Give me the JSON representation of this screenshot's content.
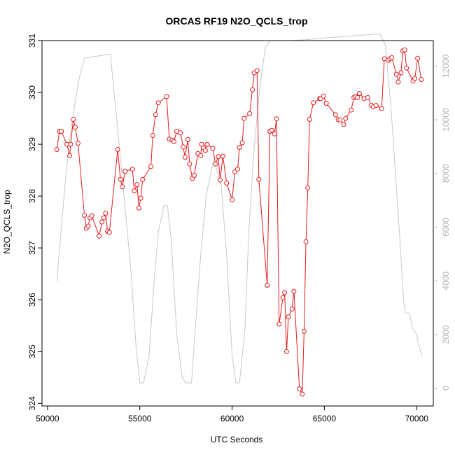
{
  "chart_data": {
    "type": "line",
    "title": "ORCAS RF19 N2O_QCLS_trop",
    "xlabel": "UTC Seconds",
    "ylabel": "N2O_QCLS_trop",
    "xlim": [
      50000,
      70000
    ],
    "ylim": [
      324,
      331
    ],
    "x_ticks": [
      50000,
      55000,
      60000,
      65000,
      70000
    ],
    "y_ticks": [
      324,
      325,
      326,
      327,
      328,
      329,
      330,
      331
    ],
    "y2lim": [
      0,
      13000
    ],
    "y2_ticks": [
      0,
      2000,
      4000,
      6000,
      8000,
      10000,
      12000
    ],
    "grid": false,
    "colors": {
      "series": "#e41a1c",
      "altitude": "#c8c8c8",
      "right_axis": "#b4b4b4"
    },
    "series": [
      {
        "axis": "left",
        "style": "line+open-circles",
        "x": [
          50500,
          50650,
          50750,
          51050,
          51200,
          51250,
          51400,
          51500,
          51650,
          52000,
          52100,
          52200,
          52300,
          52400,
          52800,
          52950,
          53050,
          53150,
          53250,
          53350,
          53800,
          53950,
          54050,
          54200,
          54600,
          54700,
          54850,
          54950,
          55050,
          55150,
          55600,
          55700,
          55850,
          56000,
          56450,
          56600,
          56750,
          56850,
          57000,
          57200,
          57350,
          57450,
          57600,
          57700,
          57850,
          57950,
          58150,
          58300,
          58350,
          58450,
          58550,
          58650,
          58950,
          59100,
          59250,
          59350,
          59500,
          59700,
          60000,
          60150,
          60300,
          60400,
          60550,
          60650,
          60950,
          61100,
          61200,
          61350,
          61450,
          61900,
          62050,
          62150,
          62300,
          62400,
          62550,
          62750,
          62850,
          62950,
          63050,
          63250,
          63350,
          63650,
          63800,
          63900,
          64000,
          64100,
          64200,
          64400,
          64750,
          64800,
          64950,
          65100,
          65600,
          65750,
          65850,
          66050,
          66150,
          66450,
          66600,
          66700,
          66800,
          66900,
          67150,
          67350,
          67550,
          67650,
          67800,
          68100,
          68250,
          68450,
          68550,
          68650,
          68900,
          69000,
          69150,
          69250,
          69350,
          69450,
          69800,
          69900,
          70050,
          70250
        ],
        "y": [
          328.9,
          329.25,
          329.25,
          329.0,
          328.78,
          329.0,
          329.48,
          329.33,
          329.02,
          327.63,
          327.38,
          327.42,
          327.58,
          327.62,
          327.23,
          327.5,
          327.58,
          327.67,
          327.32,
          327.3,
          328.9,
          328.32,
          328.18,
          328.48,
          328.52,
          328.1,
          328.22,
          327.77,
          327.96,
          328.32,
          328.57,
          329.17,
          329.57,
          329.8,
          329.92,
          329.1,
          329.08,
          329.05,
          329.25,
          329.22,
          328.95,
          328.75,
          329.09,
          328.62,
          328.34,
          328.4,
          328.82,
          328.78,
          329.0,
          328.93,
          328.88,
          329.0,
          328.92,
          328.62,
          328.76,
          328.31,
          328.77,
          328.25,
          327.93,
          328.47,
          328.52,
          328.94,
          329.03,
          329.5,
          329.59,
          330.05,
          330.38,
          330.42,
          328.32,
          326.28,
          329.25,
          329.27,
          329.2,
          329.49,
          325.53,
          326.04,
          326.14,
          325.0,
          325.67,
          325.82,
          326.16,
          324.28,
          324.18,
          325.39,
          327.12,
          328.16,
          329.48,
          329.8,
          329.88,
          329.88,
          329.93,
          329.79,
          329.57,
          329.47,
          329.47,
          329.38,
          329.5,
          329.66,
          329.9,
          329.92,
          329.9,
          329.98,
          329.88,
          329.9,
          329.75,
          329.72,
          329.75,
          329.69,
          330.65,
          330.62,
          330.65,
          330.67,
          330.35,
          330.2,
          330.38,
          330.8,
          330.82,
          330.47,
          330.22,
          330.27,
          330.66,
          330.25
        ]
      },
      {
        "axis": "right",
        "style": "line",
        "x": [
          50500,
          50750,
          51000,
          51300,
          51700,
          52000,
          52500,
          53000,
          53400,
          54000,
          54500,
          54800,
          55000,
          55200,
          55500,
          55800,
          56000,
          56300,
          56500,
          56700,
          57000,
          57300,
          57500,
          57800,
          58000,
          58300,
          58600,
          59000,
          59400,
          59700,
          60000,
          60200,
          60400,
          60700,
          60900,
          61200,
          61500,
          61800,
          62000,
          62100,
          62300,
          63000,
          64000,
          65000,
          66000,
          67000,
          68000,
          68300,
          68600,
          69000,
          69300,
          69400,
          69600,
          69800,
          70000,
          70100,
          70300
        ],
        "y": [
          4000,
          6000,
          8000,
          9800,
          11500,
          12300,
          12350,
          12400,
          12450,
          8200,
          4500,
          1500,
          200,
          200,
          1200,
          4200,
          5800,
          6800,
          6800,
          5500,
          2000,
          400,
          200,
          200,
          2200,
          5000,
          7200,
          8500,
          7600,
          5000,
          1200,
          200,
          200,
          2200,
          5800,
          9000,
          11200,
          12700,
          12900,
          12950,
          12950,
          12950,
          12980,
          13050,
          13100,
          13150,
          13200,
          12800,
          10500,
          6500,
          3200,
          2800,
          2800,
          2200,
          2000,
          1600,
          1200
        ]
      }
    ]
  }
}
